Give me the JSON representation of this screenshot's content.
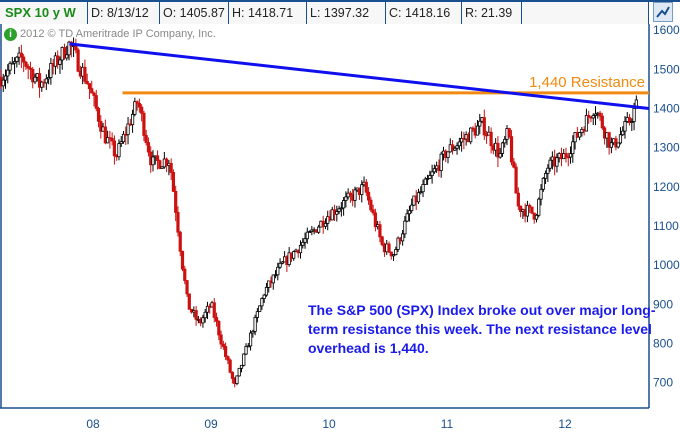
{
  "header": {
    "title": "SPX 10 y W",
    "date": "D: 8/13/12",
    "open": "O: 1405.87",
    "high": "H: 1418.71",
    "low": "L: 1397.32",
    "close": "C: 1418.16",
    "range": "R: 21.39"
  },
  "copyright": "2012 © TD Ameritrade IP Company, Inc.",
  "info_icon": "i",
  "note": "The S&P 500 (SPX) Index broke out over major long-term resistance this week. The next resistance level overhead is 1,440.",
  "colors": {
    "up": "#000000",
    "down": "#cc1111",
    "trendline": "#1010ee",
    "resistance": "#f08a10",
    "axis": "#1a4f8f"
  },
  "chart_data": {
    "type": "candlestick",
    "title": "SPX 10 y W",
    "ylim": [
      640,
      1640
    ],
    "yticks": [
      "1600",
      "1500",
      "1400",
      "1300",
      "1200",
      "1100",
      "1000",
      "900",
      "800",
      "700"
    ],
    "ytick_values": [
      1600,
      1500,
      1400,
      1300,
      1200,
      1100,
      1000,
      900,
      800,
      700
    ],
    "xticks": [
      "08",
      "09",
      "10",
      "11",
      "12"
    ],
    "xtick_values": [
      2008,
      2009,
      2010,
      2011,
      2012
    ],
    "xlim": [
      2007.21,
      2012.7
    ],
    "path": [
      [
        2007.22,
        1480
      ],
      [
        2007.4,
        1530
      ],
      [
        2007.55,
        1460
      ],
      [
        2007.8,
        1565
      ],
      [
        2007.95,
        1470
      ],
      [
        2008.1,
        1330
      ],
      [
        2008.2,
        1280
      ],
      [
        2008.38,
        1420
      ],
      [
        2008.5,
        1260
      ],
      [
        2008.65,
        1270
      ],
      [
        2008.8,
        900
      ],
      [
        2008.9,
        850
      ],
      [
        2009.0,
        900
      ],
      [
        2009.15,
        740
      ],
      [
        2009.2,
        690
      ],
      [
        2009.45,
        930
      ],
      [
        2009.6,
        1000
      ],
      [
        2010.0,
        1130
      ],
      [
        2010.3,
        1200
      ],
      [
        2010.45,
        1050
      ],
      [
        2010.55,
        1030
      ],
      [
        2010.7,
        1150
      ],
      [
        2011.0,
        1290
      ],
      [
        2011.3,
        1360
      ],
      [
        2011.45,
        1280
      ],
      [
        2011.52,
        1340
      ],
      [
        2011.6,
        1150
      ],
      [
        2011.75,
        1130
      ],
      [
        2011.85,
        1250
      ],
      [
        2012.0,
        1280
      ],
      [
        2012.25,
        1405
      ],
      [
        2012.4,
        1300
      ],
      [
        2012.55,
        1370
      ],
      [
        2012.62,
        1418
      ]
    ],
    "trendline": {
      "from": [
        2007.8,
        1565
      ],
      "to": [
        2012.7,
        1400
      ]
    },
    "resistance": {
      "level": 1440,
      "from": 2008.25,
      "label": "1,440 Resistance"
    }
  }
}
